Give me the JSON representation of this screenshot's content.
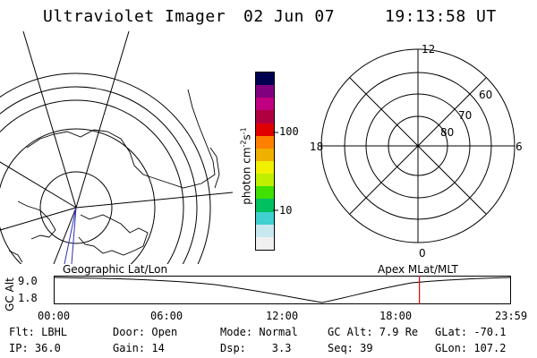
{
  "header": {
    "title": "Ultraviolet Imager",
    "date": "02 Jun 07",
    "time": "19:13:58 UT"
  },
  "colorbar": {
    "unit_label": "photon cm",
    "unit_exp1": "-2",
    "unit_s": "s",
    "unit_exp2": "-1",
    "tick_high": "100",
    "tick_low": "10",
    "colors": [
      "#f0f0f0",
      "#c8e8f0",
      "#40d0d0",
      "#00c060",
      "#40e000",
      "#c0f000",
      "#f0f000",
      "#f0b000",
      "#ff8000",
      "#e00000",
      "#b00040",
      "#c00080",
      "#800080",
      "#000050"
    ]
  },
  "polar_plot": {
    "mlt_top": "12",
    "mlt_left": "18",
    "mlt_right": "6",
    "mlt_bottom": "0",
    "lat_60": "60",
    "lat_70": "70",
    "lat_80": "80"
  },
  "map_labels": {
    "left": "Geographic Lat/Lon",
    "right": "Apex MLat/MLT"
  },
  "altitude_plot": {
    "axis_label": "GC Alt",
    "y_high": "9.0",
    "y_low": "1.8",
    "x_ticks": [
      "00:00",
      "06:00",
      "12:00",
      "18:00",
      "23:59"
    ],
    "current_time_hours": 19.23,
    "current_marker_color": "#e00000"
  },
  "info": {
    "flt": "Flt: LBHL",
    "door": "Door: Open",
    "mode": "Mode: Normal",
    "gc_alt": "GC Alt: 7.9 Re",
    "glat": "GLat: -70.1",
    "ip": "IP: 36.0",
    "gain": "Gain: 14",
    "dsp": "Dsp:    3.3",
    "seq": "Seq: 39",
    "glon": "GLon: 107.2"
  }
}
